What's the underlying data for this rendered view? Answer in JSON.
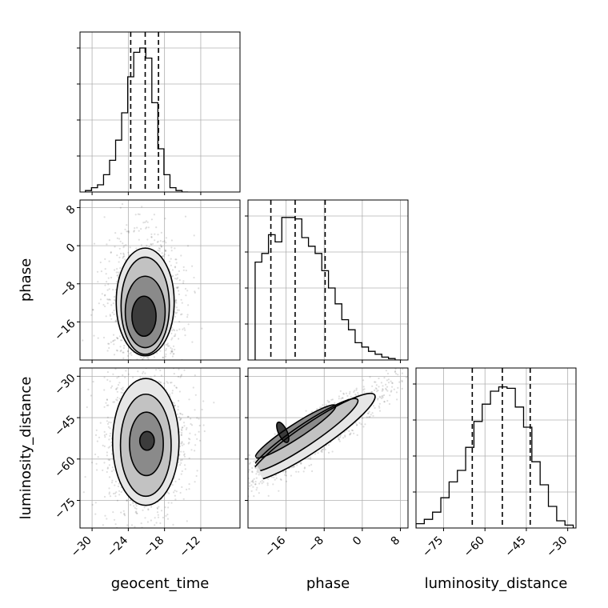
{
  "chart_data": {
    "type": "corner",
    "parameters": [
      "geocent_time",
      "phase",
      "luminosity_distance"
    ],
    "xlabels": [
      "geocent_time",
      "phase",
      "luminosity_distance"
    ],
    "ylabels": [
      "",
      "phase",
      "luminosity_distance"
    ],
    "ranges": {
      "geocent_time": [
        -32,
        -5.5
      ],
      "phase": [
        -24,
        9.6
      ],
      "luminosity_distance": [
        -85,
        -27
      ]
    },
    "ticks": {
      "geocent_time": [
        -30,
        -24,
        -18,
        -12
      ],
      "phase": [
        -16,
        -8,
        0,
        8
      ],
      "luminosity_distance": [
        -75,
        -60,
        -45,
        -30
      ]
    },
    "tick_labels": {
      "geocent_time": [
        "−30",
        "−24",
        "−18",
        "−12"
      ],
      "phase": [
        "−16",
        "−8",
        "0",
        "8"
      ],
      "luminosity_distance": [
        "−75",
        "−60",
        "−45",
        "−30"
      ]
    },
    "quantiles": {
      "geocent_time": [
        -23.6,
        -21.2,
        -19.0
      ],
      "phase": [
        -19.2,
        -14.1,
        -7.8
      ],
      "luminosity_distance": [
        -64.6,
        -53.7,
        -43.6
      ]
    },
    "histograms": {
      "geocent_time": {
        "edges": [
          -31.1,
          -30.1,
          -29.1,
          -28.1,
          -27.1,
          -26.1,
          -25.1,
          -24.1,
          -23.1,
          -22.1,
          -21.1,
          -20.1,
          -19.1,
          -18.1,
          -17.1,
          -16.1,
          -15.1,
          -14.1
        ],
        "counts": [
          0.01,
          0.03,
          0.05,
          0.12,
          0.22,
          0.36,
          0.55,
          0.8,
          0.97,
          1.0,
          0.93,
          0.62,
          0.3,
          0.12,
          0.03,
          0.01,
          0
        ]
      },
      "phase": {
        "edges": [
          -22.5,
          -21.1,
          -19.7,
          -18.3,
          -16.9,
          -15.5,
          -14.1,
          -12.7,
          -11.3,
          -9.9,
          -8.5,
          -7.1,
          -5.7,
          -4.3,
          -2.9,
          -1.5,
          -0.1,
          1.3,
          2.7,
          4.1,
          5.5,
          6.9,
          8.3
        ],
        "counts": [
          0.68,
          0.74,
          0.87,
          0.82,
          0.99,
          0.99,
          0.98,
          0.85,
          0.79,
          0.74,
          0.62,
          0.5,
          0.39,
          0.28,
          0.21,
          0.12,
          0.09,
          0.06,
          0.04,
          0.02,
          0.01,
          0
        ]
      },
      "luminosity_distance": {
        "edges": [
          -85,
          -82,
          -79,
          -76,
          -73,
          -70,
          -67,
          -64,
          -61,
          -58,
          -55,
          -52,
          -49,
          -46,
          -43,
          -40,
          -37,
          -34,
          -31,
          -28
        ],
        "counts": [
          0.03,
          0.06,
          0.11,
          0.21,
          0.32,
          0.4,
          0.56,
          0.74,
          0.86,
          0.95,
          0.98,
          0.97,
          0.84,
          0.7,
          0.46,
          0.3,
          0.15,
          0.05,
          0.02
        ]
      }
    },
    "pairs": [
      {
        "x": "geocent_time",
        "y": "phase",
        "contours": [
          {
            "center": [
              -21.4,
              -14.8
            ],
            "rx": 2.0,
            "ry": 4.2
          },
          {
            "center": [
              -21.2,
              -13.9
            ],
            "rx": 3.3,
            "ry": 7.5
          },
          {
            "center": [
              -21.2,
              -12.6
            ],
            "rx": 4.0,
            "ry": 10.2
          },
          {
            "center": [
              -21.2,
              -11.8
            ],
            "rx": 4.8,
            "ry": 11.3
          }
        ]
      },
      {
        "x": "geocent_time",
        "y": "luminosity_distance",
        "contours": [
          {
            "center": [
              -20.9,
              -53.4
            ],
            "rx": 1.2,
            "ry": 3.4
          },
          {
            "center": [
              -21.0,
              -54.5
            ],
            "rx": 2.8,
            "ry": 11.5
          },
          {
            "center": [
              -21.1,
              -55.0
            ],
            "rx": 4.2,
            "ry": 18.5
          },
          {
            "center": [
              -21.1,
              -53.8
            ],
            "rx": 5.5,
            "ry": 23.0
          }
        ]
      },
      {
        "x": "phase",
        "y": "luminosity_distance",
        "contours": [
          {
            "center": [
              -16.7,
              -50.3
            ],
            "rx": 0.9,
            "ry": 4.0,
            "angle": -25
          },
          {
            "center": [
              -14.0,
              -50.0
            ],
            "rx": 10.0,
            "ry": 2.6,
            "angle": -33
          },
          {
            "center": [
              -12.0,
              -51.3
            ],
            "rx": 13.3,
            "ry": 3.8,
            "angle": -34
          },
          {
            "center": [
              -10.5,
              -52.0
            ],
            "rx": 15.8,
            "ry": 5.0,
            "angle": -34
          }
        ]
      }
    ]
  }
}
